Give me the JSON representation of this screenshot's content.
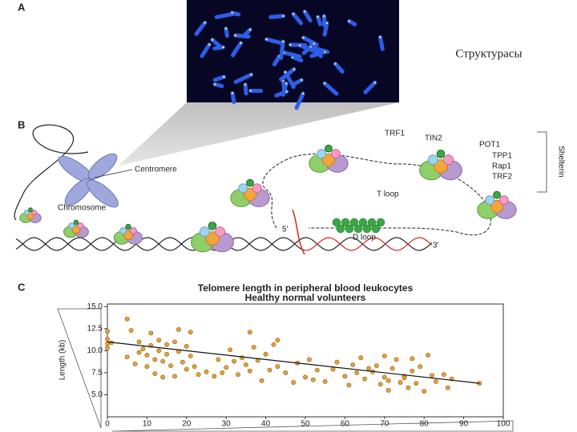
{
  "slide_title": "Структурасы",
  "panels": {
    "a": "A",
    "b": "B",
    "c": "C"
  },
  "diagram": {
    "centromere": "Centromere",
    "chromosome": "Chromosome",
    "trf1": "TRF1",
    "tin2": "TIN2",
    "pot1": "POT1",
    "tpp1": "TPP1",
    "rap1": "Rap1",
    "trf2": "TRF2",
    "shelterin": "Shelterin",
    "t_loop": "T loop",
    "d_loop": "D loop",
    "five_prime": "5'",
    "three_prime": "3'"
  },
  "chart_data": {
    "type": "scatter",
    "title": "Telomere length in peripheral blood leukocytes",
    "subtitle": "Healthy normal volunteers",
    "y_label": "Length (kb)",
    "color": "#e6a23c",
    "x": [
      0,
      0,
      0,
      0,
      1,
      5,
      5,
      6,
      7,
      8,
      8,
      9,
      10,
      10,
      11,
      11,
      12,
      12,
      13,
      13,
      14,
      14,
      15,
      15,
      16,
      17,
      17,
      18,
      18,
      19,
      20,
      20,
      21,
      21,
      22,
      23,
      25,
      27,
      28,
      29,
      30,
      31,
      32,
      33,
      34,
      35,
      36,
      36,
      37,
      38,
      39,
      40,
      41,
      42,
      43,
      43,
      45,
      47,
      48,
      50,
      51,
      52,
      53,
      55,
      57,
      58,
      60,
      61,
      62,
      63,
      64,
      65,
      66,
      67,
      68,
      69,
      70,
      70,
      71,
      71,
      72,
      73,
      74,
      75,
      75,
      76,
      77,
      77,
      78,
      79,
      80,
      81,
      82,
      83,
      85,
      86,
      87,
      94
    ],
    "y": [
      12.2,
      11.3,
      10.8,
      10.3,
      10.9,
      13.6,
      9.3,
      12.3,
      8.5,
      11.0,
      9.8,
      10.2,
      9.5,
      8.2,
      12.0,
      10.6,
      9.0,
      7.4,
      11.2,
      10.0,
      8.8,
      7.0,
      10.7,
      9.6,
      8.3,
      11.0,
      7.1,
      12.4,
      9.9,
      8.7,
      10.5,
      7.9,
      12.1,
      9.4,
      8.2,
      7.3,
      7.6,
      7.1,
      9.0,
      7.5,
      8.1,
      10.1,
      8.8,
      7.3,
      9.2,
      8.4,
      12.1,
      7.7,
      10.4,
      8.9,
      6.6,
      9.6,
      7.8,
      10.7,
      8.2,
      11.2,
      7.5,
      6.4,
      8.6,
      7.0,
      9.0,
      6.7,
      7.8,
      6.5,
      7.9,
      8.7,
      7.1,
      6.1,
      8.4,
      7.5,
      9.2,
      6.8,
      8.0,
      7.6,
      8.3,
      6.2,
      9.4,
      7.0,
      5.5,
      6.6,
      8.0,
      9.0,
      6.4,
      7.1,
      6.9,
      5.8,
      9.1,
      7.7,
      6.3,
      8.2,
      5.4,
      9.5,
      7.2,
      6.5,
      7.3,
      5.8,
      6.8,
      6.3
    ],
    "trend": {
      "x": [
        0,
        94
      ],
      "y": [
        11.0,
        6.3
      ]
    },
    "xlim": [
      0,
      100
    ],
    "ylim": [
      2.5,
      15.3
    ],
    "xticks": [
      0,
      10,
      20,
      30,
      40,
      50,
      60,
      70,
      80,
      90,
      100
    ],
    "yticks": [
      {
        "value": 5,
        "label": "5.0"
      },
      {
        "value": 7.5,
        "label": "7.5"
      },
      {
        "value": 10,
        "label": "10.0"
      },
      {
        "value": 12.5,
        "label": "12.5"
      },
      {
        "value": 15,
        "label": "15.0"
      }
    ]
  }
}
